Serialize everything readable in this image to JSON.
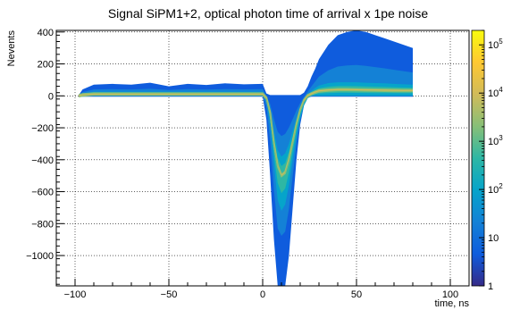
{
  "chart_data": {
    "type": "heatmap",
    "title": "Signal SiPM1+2, optical photon time of arrival x 1pe noise",
    "xlabel": "time, ns",
    "ylabel": "Nevents",
    "xlim": [
      -110,
      110
    ],
    "ylim": [
      -1190,
      410
    ],
    "x_ticks": [
      -100,
      -50,
      0,
      50,
      100
    ],
    "x_tick_labels": [
      "−100",
      "−50",
      "0",
      "50",
      "100"
    ],
    "y_ticks": [
      -1000,
      -800,
      -600,
      -400,
      -200,
      0,
      200,
      400
    ],
    "y_tick_labels": [
      "−1000",
      "−800",
      "−600",
      "−400",
      "−200",
      "0",
      "200",
      "400"
    ],
    "grid": true,
    "grid_style": "dotted",
    "colorbar": {
      "scale": "log",
      "range": [
        1,
        200000
      ],
      "ticks": [
        1,
        10,
        100,
        1000,
        10000,
        100000
      ],
      "tick_labels": [
        {
          "base": "1",
          "exp": ""
        },
        {
          "base": "10",
          "exp": ""
        },
        {
          "base": "10",
          "exp": "2"
        },
        {
          "base": "10",
          "exp": "3"
        },
        {
          "base": "10",
          "exp": "4"
        },
        {
          "base": "10",
          "exp": "5"
        }
      ],
      "palette": [
        "#352a87",
        "#0f5cdd",
        "#1481d6",
        "#06a4ca",
        "#2eb7a4",
        "#87bf77",
        "#d1bb59",
        "#fec832",
        "#f9fb0e"
      ]
    },
    "distribution": {
      "x": [
        -98,
        -96,
        -90,
        -80,
        -70,
        -60,
        -50,
        -40,
        -30,
        -20,
        -10,
        0,
        2,
        4,
        6,
        8,
        10,
        12,
        14,
        16,
        18,
        20,
        22,
        24,
        26,
        28,
        30,
        35,
        40,
        45,
        50,
        55,
        60,
        65,
        70,
        75,
        80
      ],
      "outer_upper": [
        5,
        40,
        70,
        75,
        70,
        82,
        60,
        75,
        68,
        78,
        72,
        75,
        15,
        5,
        5,
        5,
        5,
        5,
        5,
        5,
        5,
        5,
        20,
        60,
        120,
        170,
        230,
        320,
        380,
        400,
        410,
        400,
        380,
        360,
        340,
        320,
        300
      ],
      "outer_lower": [
        -5,
        -5,
        -5,
        -5,
        -5,
        -5,
        -5,
        -5,
        -5,
        -5,
        -5,
        -5,
        -150,
        -500,
        -900,
        -1190,
        -1190,
        -1190,
        -1000,
        -700,
        -400,
        -180,
        -60,
        -10,
        -5,
        -5,
        -5,
        -5,
        -5,
        -5,
        -5,
        -5,
        -5,
        -5,
        -5,
        -5,
        -5
      ],
      "inner_upper": [
        0,
        15,
        25,
        25,
        25,
        25,
        25,
        25,
        25,
        25,
        25,
        25,
        -10,
        -80,
        -220,
        -340,
        -380,
        -360,
        -300,
        -220,
        -140,
        -70,
        -20,
        10,
        30,
        50,
        65,
        80,
        85,
        85,
        85,
        82,
        80,
        78,
        75,
        72,
        70
      ],
      "inner_lower": [
        0,
        0,
        0,
        0,
        0,
        0,
        0,
        0,
        0,
        0,
        0,
        0,
        -30,
        -180,
        -430,
        -650,
        -720,
        -680,
        -560,
        -400,
        -260,
        -140,
        -60,
        -15,
        0,
        0,
        0,
        0,
        0,
        0,
        0,
        0,
        0,
        0,
        0,
        0,
        0
      ],
      "core": [
        0,
        5,
        10,
        10,
        10,
        10,
        10,
        10,
        10,
        10,
        10,
        10,
        -15,
        -110,
        -300,
        -440,
        -500,
        -480,
        -400,
        -290,
        -180,
        -90,
        -30,
        0,
        12,
        22,
        30,
        35,
        38,
        38,
        37,
        36,
        35,
        34,
        33,
        32,
        32
      ]
    }
  }
}
